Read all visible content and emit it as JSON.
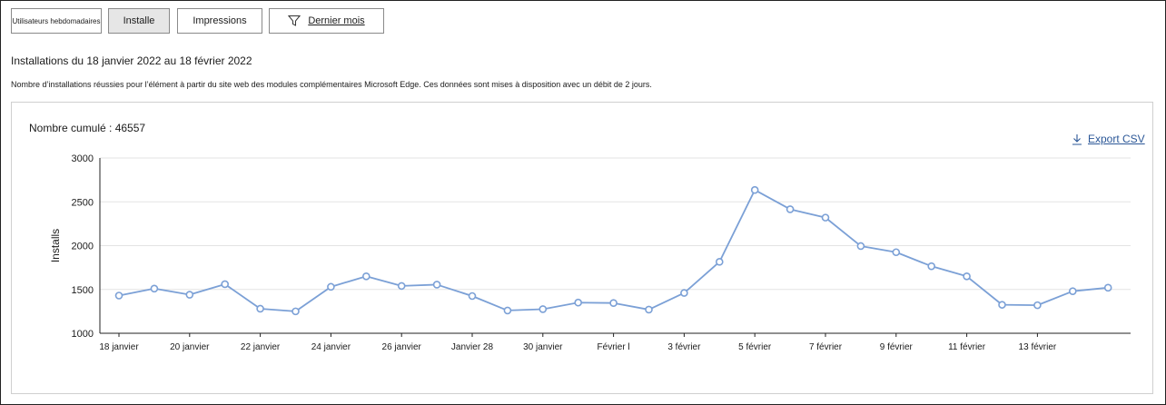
{
  "tabs": [
    {
      "label": "Utilisateurs hebdomadaires"
    },
    {
      "label": "Installe"
    },
    {
      "label": "Impressions"
    }
  ],
  "filter": {
    "label": "Dernier mois",
    "icon": "funnel-icon"
  },
  "heading": "Installations du 18 janvier 2022 au 18 février 2022",
  "description": "Nombre d’installations réussies pour l’élément à partir du site web des modules complémentaires Microsoft Edge. Ces données sont mises à disposition avec un débit de 2 jours.",
  "cumulative": "Nombre cumulé : 46557",
  "export": {
    "label": "Export CSV",
    "icon": "download-icon"
  },
  "colors": {
    "line": "#7ba0d6",
    "grid": "#e3e3e3",
    "axis": "#222222",
    "link": "#2b5797"
  },
  "chart_data": {
    "type": "line",
    "title": "",
    "xlabel": "",
    "ylabel": "Installs",
    "ylim": [
      1000,
      3000
    ],
    "yticks": [
      1000,
      1500,
      2000,
      2500,
      3000
    ],
    "xtick_labels": [
      "18 janvier",
      "20 janvier",
      "22 janvier",
      "24 janvier",
      "26 janvier",
      "Janvier 28",
      "30 janvier",
      "Février l",
      "3 février",
      "5 février",
      "7 février",
      "9 février",
      "11 février",
      "13 février"
    ],
    "grid": true,
    "values": [
      1430,
      1510,
      1440,
      1560,
      1280,
      1250,
      1530,
      1650,
      1540,
      1555,
      1425,
      1260,
      1275,
      1350,
      1345,
      1270,
      1460,
      1815,
      2635,
      2415,
      2320,
      1995,
      1925,
      1765,
      1650,
      1325,
      1320,
      1480,
      1520
    ]
  }
}
